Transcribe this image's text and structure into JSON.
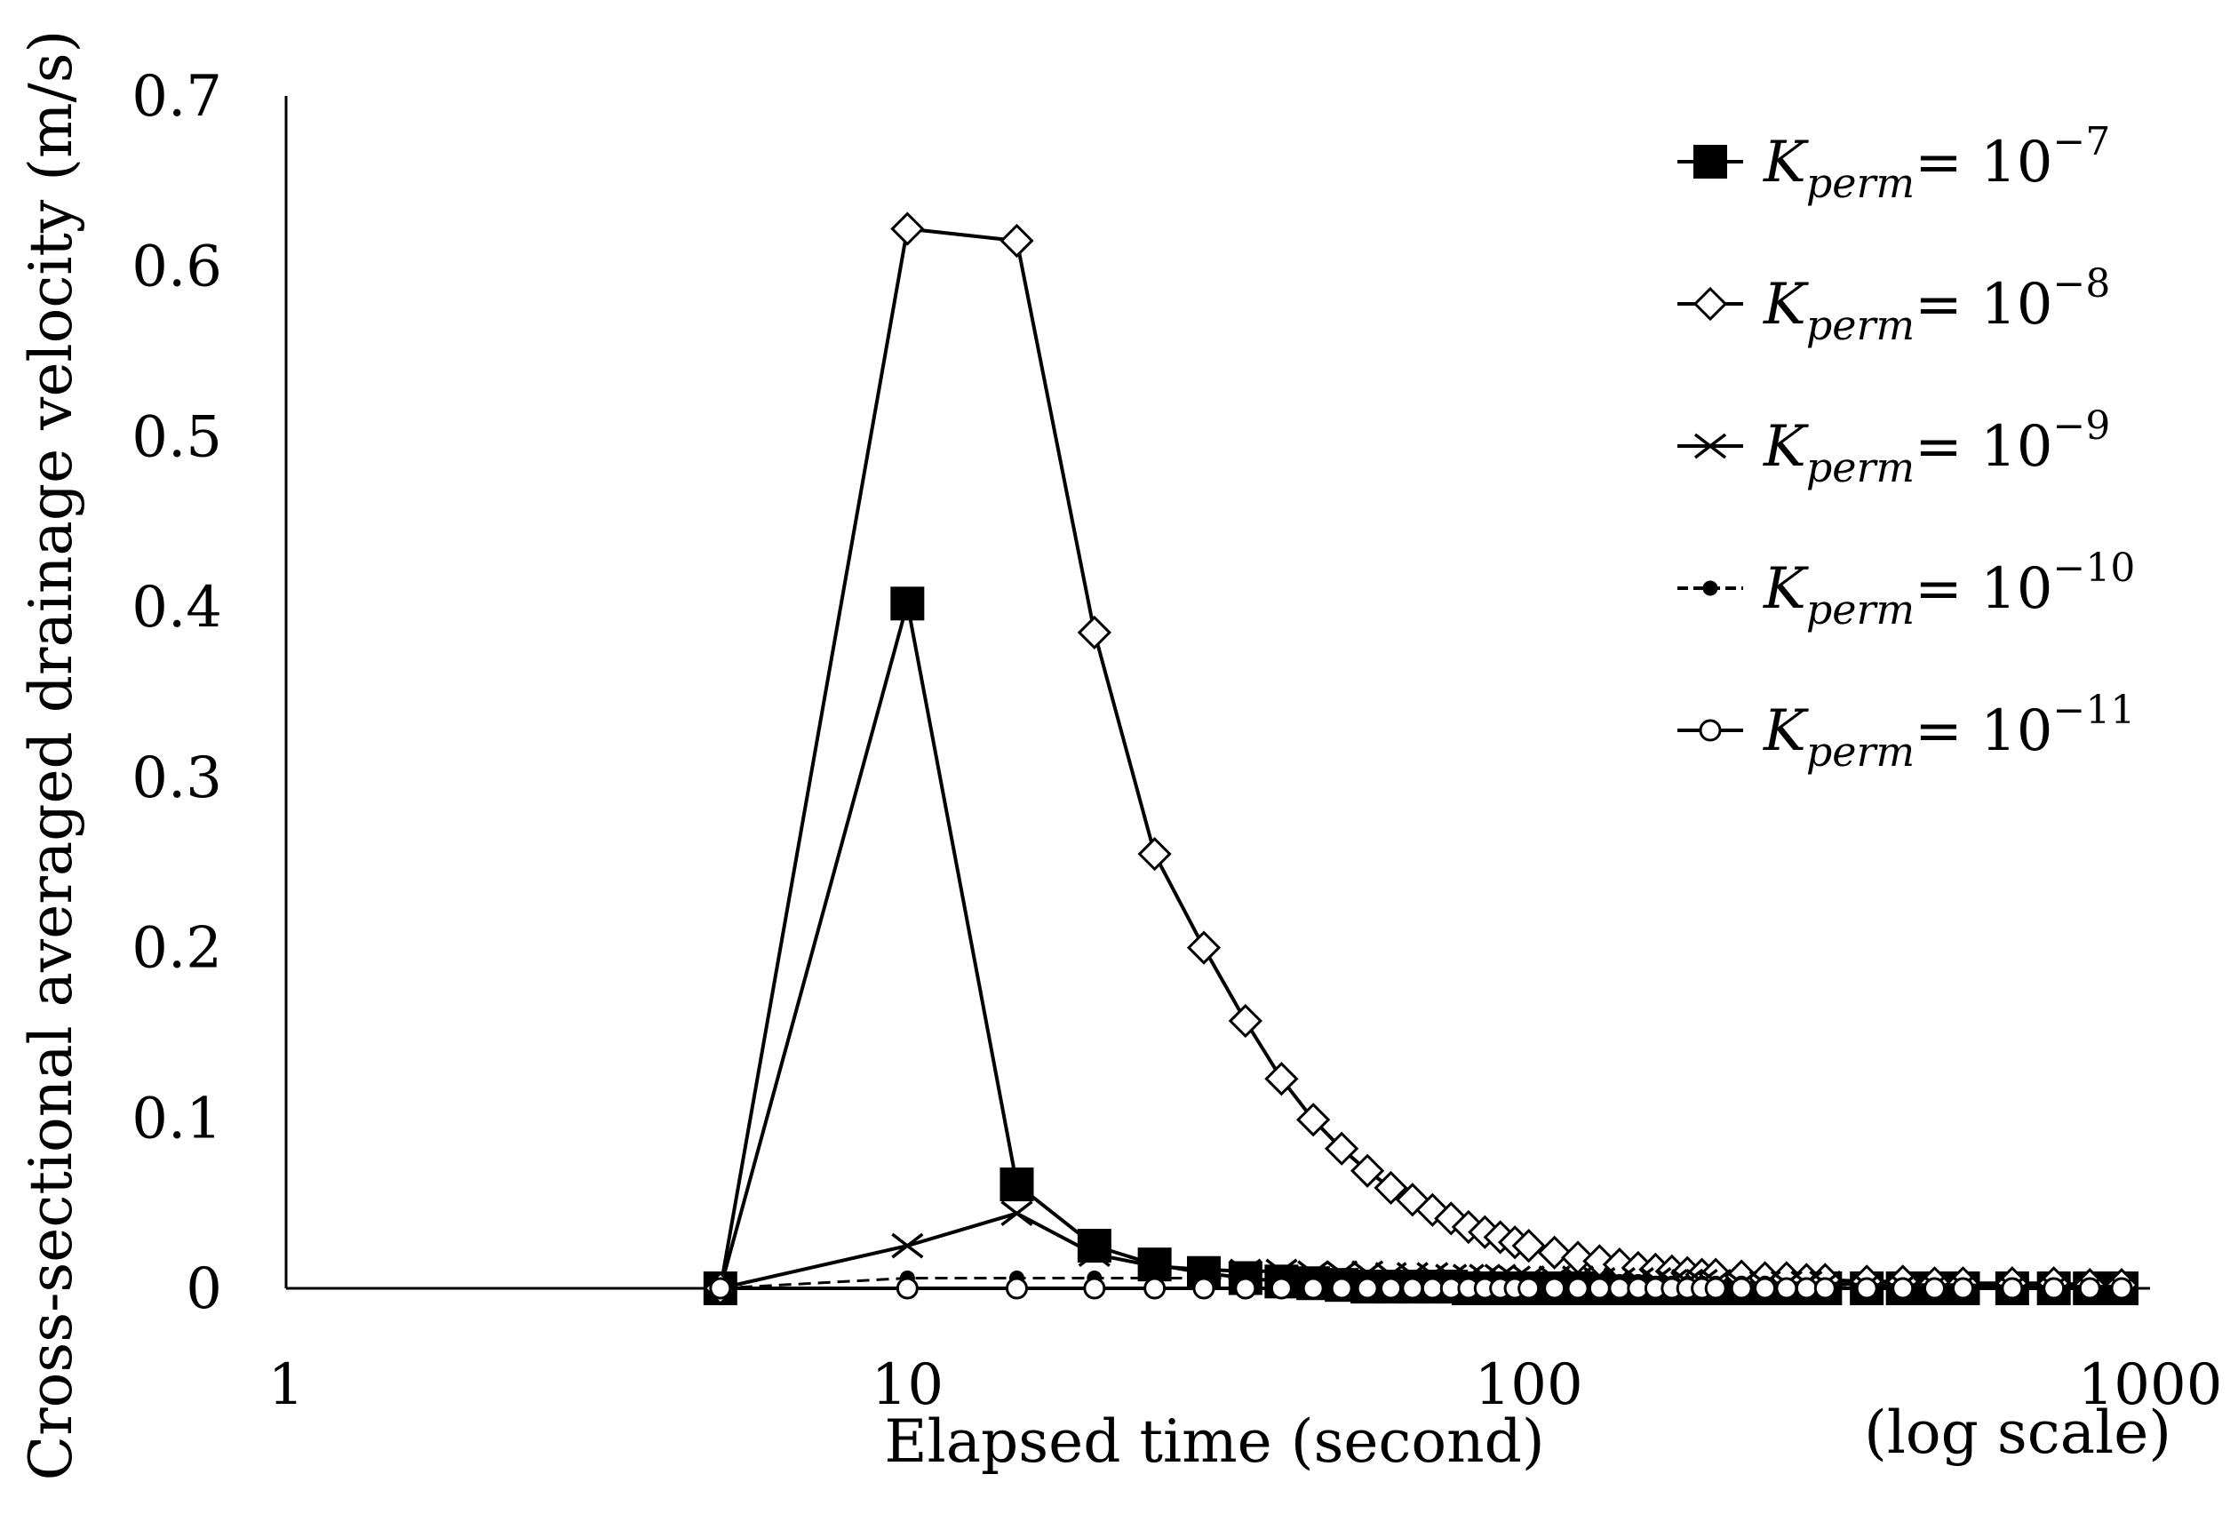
{
  "chart_data": {
    "type": "line",
    "title": "",
    "xlabel": "Elapsed time (second)",
    "xlabel_note": "(log scale)",
    "ylabel": "Cross-sectional averaged drainage velocity (m/s)",
    "xscale": "log",
    "xlim": [
      1,
      1000
    ],
    "ylim": [
      0,
      0.7
    ],
    "x_ticks": [
      "1",
      "10",
      "100",
      "1000"
    ],
    "y_ticks": [
      "0",
      "0.1",
      "0.2",
      "0.3",
      "0.4",
      "0.5",
      "0.6",
      "0.7"
    ],
    "grid": false,
    "legend_position": "top-right",
    "x": [
      5,
      10,
      15,
      20,
      25,
      30,
      35,
      40,
      45,
      50,
      55,
      60,
      65,
      70,
      75,
      80,
      85,
      90,
      95,
      100,
      110,
      120,
      130,
      140,
      150,
      160,
      170,
      180,
      190,
      200,
      220,
      240,
      260,
      280,
      300,
      350,
      400,
      450,
      500,
      600,
      700,
      800,
      900
    ],
    "series": [
      {
        "name": "K_perm = 10^-7",
        "legend_symbol": "K",
        "legend_subscript": "perm",
        "legend_value": "= 10",
        "legend_exponent": "−7",
        "marker": "filled-square",
        "values": [
          0,
          0.402,
          0.061,
          0.025,
          0.014,
          0.009,
          0.006,
          0.004,
          0.003,
          0.002,
          0.001,
          0.001,
          0.001,
          0.001,
          0.001,
          0.0,
          0.0,
          0.0,
          0.0,
          0.0,
          0.0,
          0.0,
          0.0,
          0.0,
          0.0,
          0.0,
          0.0,
          0.0,
          0.0,
          0.0,
          0.0,
          0.0,
          0.0,
          0.0,
          0.0,
          0.0,
          0.0,
          0.0,
          0.0,
          0.0,
          0.0,
          0.0,
          0.0
        ]
      },
      {
        "name": "K_perm = 10^-8",
        "legend_symbol": "K",
        "legend_subscript": "perm",
        "legend_value": "= 10",
        "legend_exponent": "−8",
        "marker": "open-diamond",
        "values": [
          0,
          0.622,
          0.615,
          0.385,
          0.255,
          0.2,
          0.157,
          0.123,
          0.099,
          0.082,
          0.069,
          0.059,
          0.052,
          0.046,
          0.041,
          0.036,
          0.033,
          0.03,
          0.027,
          0.025,
          0.021,
          0.018,
          0.016,
          0.014,
          0.012,
          0.011,
          0.01,
          0.009,
          0.008,
          0.008,
          0.007,
          0.006,
          0.006,
          0.005,
          0.005,
          0.004,
          0.004,
          0.003,
          0.003,
          0.003,
          0.003,
          0.002,
          0.002
        ]
      },
      {
        "name": "K_perm = 10^-9",
        "legend_symbol": "K",
        "legend_subscript": "perm",
        "legend_value": "= 10",
        "legend_exponent": "−9",
        "marker": "cross",
        "values": [
          0,
          0.025,
          0.044,
          0.02,
          0.013,
          0.011,
          0.01,
          0.01,
          0.009,
          0.009,
          0.009,
          0.008,
          0.008,
          0.008,
          0.007,
          0.007,
          0.007,
          0.007,
          0.006,
          0.006,
          0.006,
          0.006,
          0.005,
          0.005,
          0.005,
          0.005,
          0.004,
          0.004,
          0.004,
          0.004,
          0.003,
          0.003,
          0.003,
          0.003,
          0.003,
          0.002,
          0.002,
          0.002,
          0.002,
          0.001,
          0.001,
          0.001,
          0.001
        ]
      },
      {
        "name": "K_perm = 10^-10",
        "legend_symbol": "K",
        "legend_subscript": "perm",
        "legend_value": "= 10",
        "legend_exponent": "−10",
        "marker": "small-filled-circle",
        "values": [
          0,
          0.006,
          0.006,
          0.006,
          0.006,
          0.006,
          0.006,
          0.006,
          0.005,
          0.005,
          0.005,
          0.005,
          0.005,
          0.005,
          0.005,
          0.005,
          0.005,
          0.005,
          0.004,
          0.004,
          0.004,
          0.004,
          0.004,
          0.004,
          0.004,
          0.003,
          0.003,
          0.003,
          0.003,
          0.003,
          0.003,
          0.003,
          0.002,
          0.002,
          0.002,
          0.002,
          0.002,
          0.002,
          0.001,
          0.001,
          0.001,
          0.001,
          0.001
        ]
      },
      {
        "name": "K_perm = 10^-11",
        "legend_symbol": "K",
        "legend_subscript": "perm",
        "legend_value": "= 10",
        "legend_exponent": "−11",
        "marker": "open-circle",
        "values": [
          0,
          0.0,
          0.0,
          0.0,
          0.0,
          0.0,
          0.0,
          0.0,
          0.0,
          0.0,
          0.0,
          0.0,
          0.0,
          0.0,
          0.0,
          0.0,
          0.0,
          0.0,
          0.0,
          0.0,
          0.0,
          0.0,
          0.0,
          0.0,
          0.0,
          0.0,
          0.0,
          0.0,
          0.0,
          0.0,
          0.0,
          0.0,
          0.0,
          0.0,
          0.0,
          0.0,
          0.0,
          0.0,
          0.0,
          0.0,
          0.0,
          0.0,
          0.0
        ]
      }
    ]
  }
}
